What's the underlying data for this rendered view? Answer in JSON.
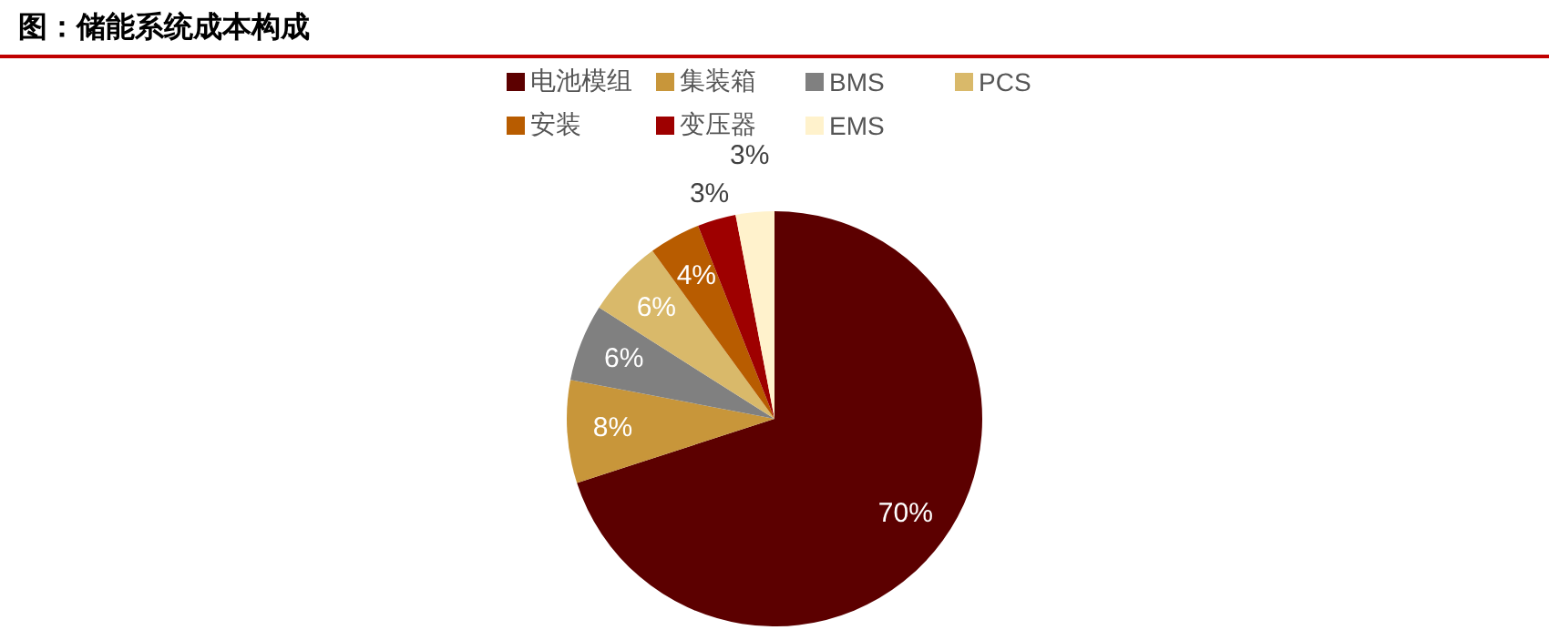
{
  "chart_data": {
    "type": "pie",
    "title": "图：储能系统成本构成",
    "categories": [
      "电池模组",
      "集装箱",
      "BMS",
      "PCS",
      "安装",
      "变压器",
      "EMS"
    ],
    "values": [
      70,
      8,
      6,
      6,
      4,
      3,
      3
    ],
    "colors": [
      "#5c0000",
      "#c8963a",
      "#808080",
      "#d9b96a",
      "#b85c00",
      "#9e0000",
      "#fff2cc"
    ],
    "value_labels": [
      "70%",
      "8%",
      "6%",
      "6%",
      "4%",
      "3%",
      "3%"
    ],
    "legend": "top"
  }
}
